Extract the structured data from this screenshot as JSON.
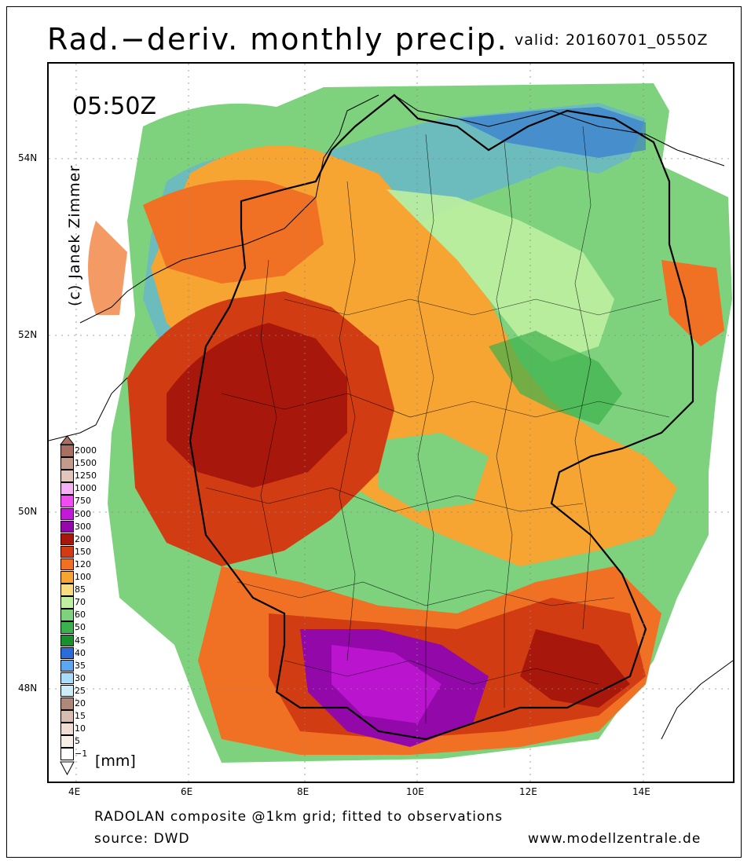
{
  "header": {
    "title": "Rad.−deriv. monthly precip.",
    "valid": "valid: 20160701_0550Z"
  },
  "map": {
    "time_label": "05:50Z",
    "copyright": "(c) Janek Zimmer",
    "lat_labels": [
      "54N",
      "52N",
      "50N",
      "48N"
    ],
    "lon_labels": [
      "4E",
      "6E",
      "8E",
      "10E",
      "12E",
      "14E"
    ],
    "dominant_colors": {
      "land_moderate": "#f2a030",
      "heavy_red": "#d23c12",
      "dark_red": "#a8170c",
      "purple": "#a40ec4",
      "green": "#7ed27e",
      "blue": "#5ca8f0",
      "sea_outline": "#000000"
    }
  },
  "legend": {
    "unit": "[mm]",
    "levels": [
      {
        "label": "2000",
        "color": "#a87060"
      },
      {
        "label": "1500",
        "color": "#c49a8a"
      },
      {
        "label": "1250",
        "color": "#e2c6bc"
      },
      {
        "label": "1000",
        "color": "#f6b0f6"
      },
      {
        "label": "750",
        "color": "#f04cf0"
      },
      {
        "label": "500",
        "color": "#c418d8"
      },
      {
        "label": "300",
        "color": "#9208a8"
      },
      {
        "label": "200",
        "color": "#a8170c"
      },
      {
        "label": "150",
        "color": "#d23c12"
      },
      {
        "label": "120",
        "color": "#f07024"
      },
      {
        "label": "100",
        "color": "#f6a432"
      },
      {
        "label": "85",
        "color": "#f8dc80"
      },
      {
        "label": "70",
        "color": "#bef0a0"
      },
      {
        "label": "60",
        "color": "#7ed27e"
      },
      {
        "label": "50",
        "color": "#3cb04c"
      },
      {
        "label": "45",
        "color": "#18902c"
      },
      {
        "label": "40",
        "color": "#2a6cd8"
      },
      {
        "label": "35",
        "color": "#5ca8f0"
      },
      {
        "label": "30",
        "color": "#a8dcf8"
      },
      {
        "label": "25",
        "color": "#ccecf8"
      },
      {
        "label": "20",
        "color": "#b08878"
      },
      {
        "label": "15",
        "color": "#d8bcb0"
      },
      {
        "label": "10",
        "color": "#f0dcd2"
      },
      {
        "label": "5",
        "color": "#f8eee8"
      },
      {
        "label": "−1",
        "color": "#ffffff"
      }
    ]
  },
  "footer": {
    "line1": "RADOLAN composite @1km grid; fitted to observations",
    "line2": "source: DWD",
    "website": "www.modellzentrale.de"
  }
}
